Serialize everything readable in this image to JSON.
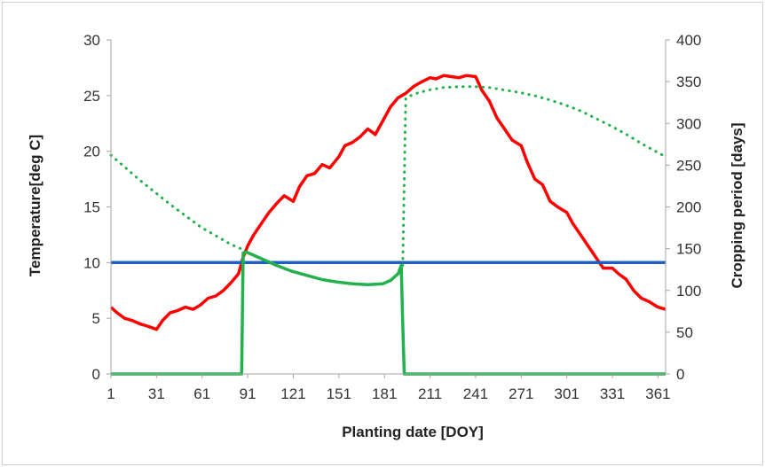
{
  "chart_data": {
    "type": "line",
    "title": "",
    "xlabel": "Planting date [DOY]",
    "ylabel": "Temperature[deg C]",
    "y2label": "Cropping period [days]",
    "xlim": [
      1,
      366
    ],
    "ylim": [
      0,
      30
    ],
    "y2lim": [
      0,
      400
    ],
    "x_ticks": [
      "1",
      "31",
      "61",
      "91",
      "121",
      "151",
      "181",
      "211",
      "241",
      "271",
      "301",
      "331",
      "361"
    ],
    "y_ticks": [
      "0",
      "5",
      "10",
      "15",
      "20",
      "25",
      "30"
    ],
    "y2_ticks": [
      "0",
      "50",
      "100",
      "150",
      "200",
      "250",
      "300",
      "350",
      "400"
    ],
    "grid": false,
    "legend": "none",
    "series": [
      {
        "axis": "left",
        "color": "#ff0000",
        "style": "solid",
        "x": [
          1,
          5,
          10,
          15,
          20,
          25,
          31,
          35,
          40,
          45,
          50,
          55,
          60,
          65,
          70,
          75,
          80,
          85,
          88,
          91,
          95,
          100,
          105,
          110,
          115,
          121,
          125,
          130,
          135,
          140,
          145,
          151,
          155,
          160,
          165,
          170,
          175,
          181,
          185,
          190,
          195,
          200,
          205,
          211,
          215,
          220,
          225,
          230,
          235,
          241,
          245,
          250,
          255,
          260,
          265,
          271,
          275,
          280,
          285,
          290,
          295,
          301,
          305,
          310,
          315,
          320,
          325,
          331,
          335,
          340,
          345,
          350,
          355,
          361,
          366
        ],
        "values": [
          6.0,
          5.5,
          5.0,
          4.8,
          4.5,
          4.3,
          4.0,
          4.8,
          5.5,
          5.7,
          6.0,
          5.8,
          6.2,
          6.8,
          7.0,
          7.5,
          8.2,
          9.0,
          10.5,
          11.5,
          12.5,
          13.5,
          14.5,
          15.3,
          16.0,
          15.5,
          16.8,
          17.8,
          18.0,
          18.8,
          18.5,
          19.5,
          20.5,
          20.8,
          21.3,
          22.0,
          21.5,
          23.0,
          24.0,
          24.8,
          25.2,
          25.8,
          26.2,
          26.6,
          26.5,
          26.8,
          26.7,
          26.6,
          26.8,
          26.7,
          25.5,
          24.5,
          23.0,
          22.0,
          21.0,
          20.5,
          19.0,
          17.5,
          17.0,
          15.5,
          15.0,
          14.5,
          13.5,
          12.5,
          11.5,
          10.5,
          9.5,
          9.5,
          9.0,
          8.5,
          7.5,
          6.8,
          6.5,
          6.0,
          5.8
        ]
      },
      {
        "axis": "left",
        "color": "#1f5fbf",
        "style": "solid",
        "x": [
          1,
          366
        ],
        "values": [
          10,
          10
        ]
      },
      {
        "axis": "right",
        "color": "#22b14c",
        "style": "solid",
        "x": [
          1,
          87,
          88,
          90,
          100,
          110,
          120,
          130,
          140,
          150,
          160,
          170,
          180,
          185,
          190,
          192,
          193,
          194,
          366
        ],
        "values": [
          0,
          0,
          145,
          146,
          138,
          130,
          123,
          118,
          113,
          110,
          108,
          107,
          108,
          112,
          120,
          130,
          60,
          0,
          0
        ]
      },
      {
        "axis": "right",
        "color": "#22b14c",
        "style": "dotted",
        "x": [
          1,
          20,
          40,
          60,
          80,
          89
        ],
        "values": [
          262,
          232,
          203,
          176,
          155,
          148
        ]
      },
      {
        "axis": "right",
        "color": "#22b14c",
        "style": "dotted",
        "x": [
          193,
          195,
          200,
          210,
          220,
          230,
          240,
          250,
          260,
          270,
          280,
          290,
          300,
          310,
          320,
          330,
          340,
          350,
          360,
          366
        ],
        "values": [
          130,
          330,
          335,
          340,
          343,
          344,
          344,
          343,
          340,
          337,
          333,
          328,
          322,
          315,
          306,
          297,
          287,
          276,
          266,
          260
        ]
      }
    ]
  }
}
